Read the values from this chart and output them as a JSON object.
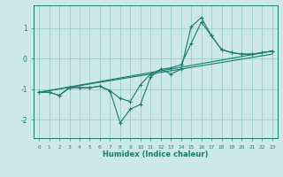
{
  "xlabel": "Humidex (Indice chaleur)",
  "background_color": "#cce8e8",
  "grid_color": "#99cccc",
  "line_color": "#1a7a6e",
  "xlim": [
    -0.5,
    23.5
  ],
  "ylim": [
    -2.6,
    1.75
  ],
  "yticks": [
    -2,
    -1,
    0,
    1
  ],
  "xticks": [
    0,
    1,
    2,
    3,
    4,
    5,
    6,
    7,
    8,
    9,
    10,
    11,
    12,
    13,
    14,
    15,
    16,
    17,
    18,
    19,
    20,
    21,
    22,
    23
  ],
  "series": [
    {
      "x": [
        0,
        1,
        2,
        3,
        4,
        5,
        6,
        7,
        8,
        9,
        10,
        11,
        12,
        13,
        14,
        15,
        16,
        17,
        18,
        19,
        20,
        21,
        22,
        23
      ],
      "y": [
        -1.1,
        -1.1,
        -1.2,
        -0.95,
        -0.95,
        -0.95,
        -0.9,
        -1.05,
        -2.1,
        -1.65,
        -1.5,
        -0.6,
        -0.35,
        -0.5,
        -0.35,
        1.05,
        1.35,
        0.75,
        0.3,
        0.2,
        0.15,
        0.15,
        0.2,
        0.25
      ],
      "marker": true
    },
    {
      "x": [
        0,
        1,
        2,
        3,
        4,
        5,
        6,
        7,
        8,
        9,
        10,
        11,
        12,
        13,
        14,
        15,
        16,
        17,
        18,
        19,
        20,
        21,
        22,
        23
      ],
      "y": [
        -1.1,
        -1.1,
        -1.2,
        -0.95,
        -0.95,
        -0.95,
        -0.9,
        -1.05,
        -1.3,
        -1.4,
        -0.85,
        -0.5,
        -0.35,
        -0.3,
        -0.2,
        0.5,
        1.2,
        0.75,
        0.3,
        0.2,
        0.15,
        0.15,
        0.2,
        0.25
      ],
      "marker": true
    },
    {
      "x": [
        0,
        23
      ],
      "y": [
        -1.1,
        0.25
      ],
      "marker": false
    },
    {
      "x": [
        0,
        23
      ],
      "y": [
        -1.1,
        0.15
      ],
      "marker": false
    }
  ]
}
